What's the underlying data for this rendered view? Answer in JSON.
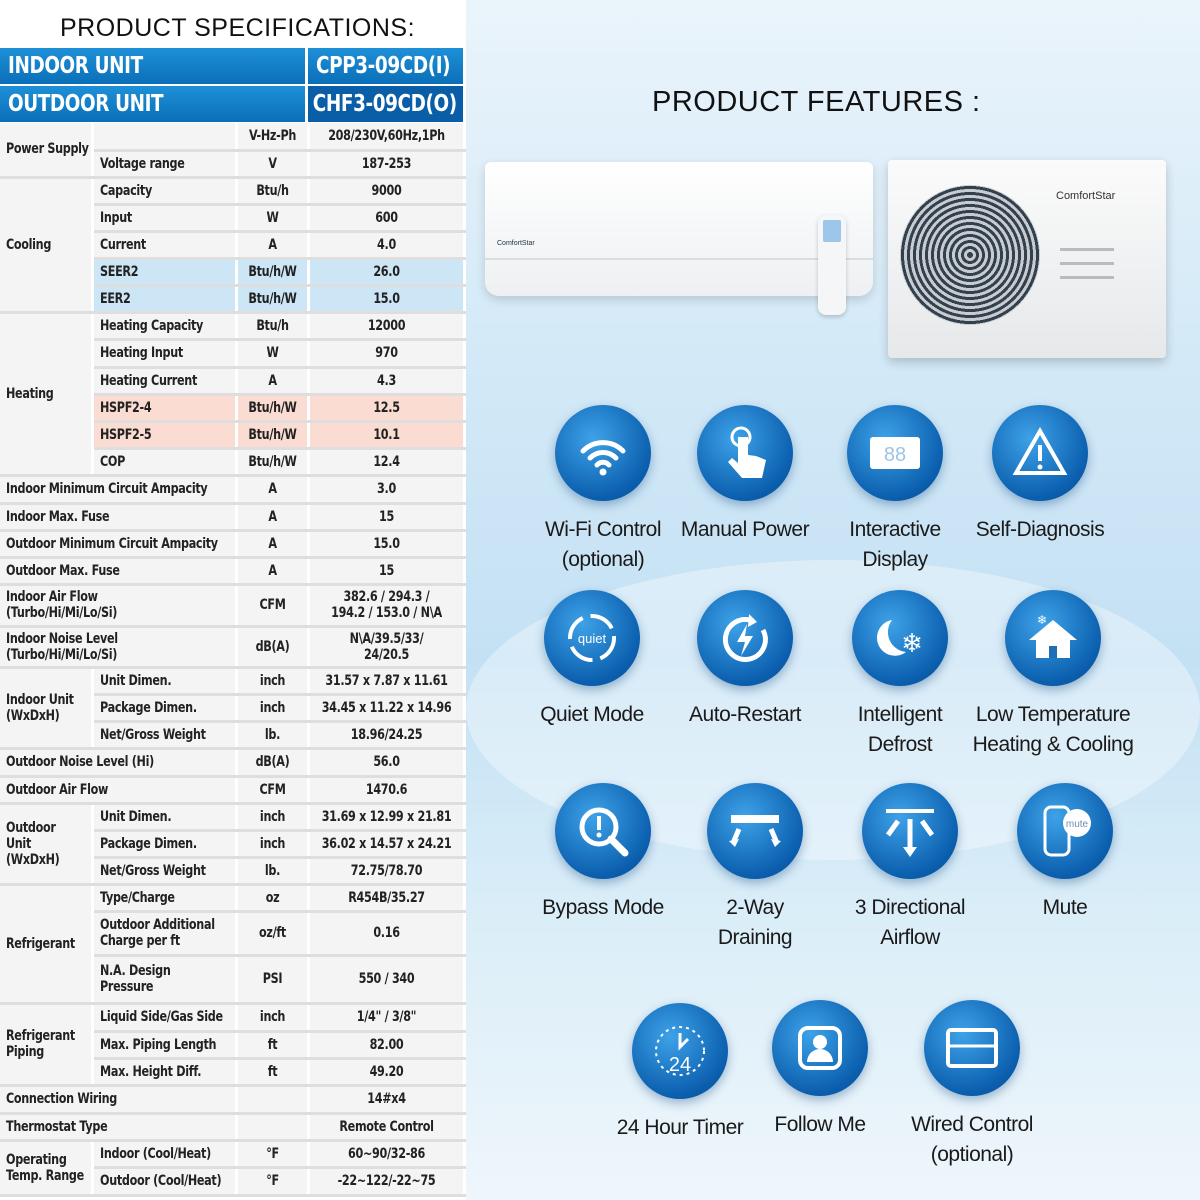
{
  "spec_title": "PRODUCT SPECIFICATIONS:",
  "features_title": "PRODUCT FEATURES :",
  "header": {
    "indoor_label": "INDOOR UNIT",
    "indoor_model": "CPP3-09CD(I)",
    "outdoor_label": "OUTDOOR UNIT",
    "outdoor_model": "CHF3-09CD(O)"
  },
  "brand": "ComfortStar",
  "rows": [
    {
      "g": "Power Supply",
      "gs": 2,
      "p": "",
      "u": "V-Hz-Ph",
      "v": "208/230V,60Hz,1Ph",
      "h": 27
    },
    {
      "p": "Voltage range",
      "u": "V",
      "v": "187-253",
      "h": 27
    },
    {
      "g": "Cooling",
      "gs": 5,
      "p": "Capacity",
      "u": "Btu/h",
      "v": "9000",
      "h": 27
    },
    {
      "p": "Input",
      "u": "W",
      "v": "600",
      "h": 27
    },
    {
      "p": "Current",
      "u": "A",
      "v": "4.0",
      "h": 27
    },
    {
      "p": "SEER2",
      "u": "Btu/h/W",
      "v": "26.0",
      "h": 27,
      "hl": "blue"
    },
    {
      "p": "EER2",
      "u": "Btu/h/W",
      "v": "15.0",
      "h": 27,
      "hl": "blue"
    },
    {
      "g": "Heating",
      "gs": 6,
      "p": "Heating Capacity",
      "u": "Btu/h",
      "v": "12000",
      "h": 27
    },
    {
      "p": "Heating Input",
      "u": "W",
      "v": "970",
      "h": 28
    },
    {
      "p": "Heating Current",
      "u": "A",
      "v": "4.3",
      "h": 27
    },
    {
      "p": "HSPF2-4",
      "u": "Btu/h/W",
      "v": "12.5",
      "h": 27,
      "hl": "pink"
    },
    {
      "p": "HSPF2-5",
      "u": "Btu/h/W",
      "v": "10.1",
      "h": 27,
      "hl": "pink"
    },
    {
      "p": "COP",
      "u": "Btu/h/W",
      "v": "12.4",
      "h": 27
    },
    {
      "w": "Indoor Minimum Circuit Ampacity",
      "u": "A",
      "v": "3.0",
      "h": 28
    },
    {
      "w": "Indoor Max. Fuse",
      "u": "A",
      "v": "15",
      "h": 27
    },
    {
      "w": "Outdoor Minimum Circuit Ampacity",
      "u": "A",
      "v": "15.0",
      "h": 27
    },
    {
      "w": "Outdoor Max. Fuse",
      "u": "A",
      "v": "15",
      "h": 27
    },
    {
      "w": "Indoor Air Flow\n(Turbo/Hi/Mi/Lo/Si)",
      "u": "CFM",
      "v": "382.6 / 294.3 /\n194.2 / 153.0 / N\\A",
      "h": 42
    },
    {
      "w": "Indoor Noise Level\n(Turbo/Hi/Mi/Lo/Si)",
      "u": "dB(A)",
      "v": "N\\A/39.5/33/\n24/20.5",
      "h": 41
    },
    {
      "g": "Indoor Unit\n(WxDxH)",
      "gs": 3,
      "p": "Unit Dimen.",
      "u": "inch",
      "v": "31.57 x 7.87 x 11.61",
      "h": 27
    },
    {
      "p": "Package Dimen.",
      "u": "inch",
      "v": "34.45 x 11.22 x 14.96",
      "h": 27
    },
    {
      "p": "Net/Gross Weight",
      "u": "lb.",
      "v": "18.96/24.25",
      "h": 27
    },
    {
      "w": "Outdoor Noise Level (Hi)",
      "u": "dB(A)",
      "v": "56.0",
      "h": 28
    },
    {
      "w": "Outdoor Air Flow",
      "u": "CFM",
      "v": "1470.6",
      "h": 27
    },
    {
      "g": "Outdoor\nUnit\n(WxDxH)",
      "gs": 3,
      "p": "Unit Dimen.",
      "u": "inch",
      "v": "31.69 x 12.99 x 21.81",
      "h": 27
    },
    {
      "p": "Package Dimen.",
      "u": "inch",
      "v": "36.02 x 14.57 x 24.21",
      "h": 27
    },
    {
      "p": "Net/Gross Weight",
      "u": "lb.",
      "v": "72.75/78.70",
      "h": 27
    },
    {
      "g": "Refrigerant",
      "gs": 3,
      "p": "Type/Charge",
      "u": "oz",
      "v": "R454B/35.27",
      "h": 27
    },
    {
      "p": "Outdoor Additional\nCharge per ft",
      "u": "oz/ft",
      "v": "0.16",
      "h": 44
    },
    {
      "p": "N.A. Design\nPressure",
      "u": "PSI",
      "v": "550 / 340",
      "h": 48
    },
    {
      "g": "Refrigerant\nPiping",
      "gs": 3,
      "p": "Liquid Side/Gas Side",
      "u": "inch",
      "v": "1/4\" / 3/8\"",
      "h": 28
    },
    {
      "p": "Max. Piping Length",
      "u": "ft",
      "v": "82.00",
      "h": 27
    },
    {
      "p": "Max. Height Diff.",
      "u": "ft",
      "v": "49.20",
      "h": 27
    },
    {
      "w": "Connection Wiring",
      "u": "",
      "v": "14#x4",
      "h": 28
    },
    {
      "w": "Thermostat Type",
      "u": "",
      "v": "Remote Control",
      "h": 27
    },
    {
      "g": "Operating\nTemp. Range",
      "gs": 2,
      "p": "Indoor (Cool/Heat)",
      "u": "°F",
      "v": "60~90/32-86",
      "h": 27
    },
    {
      "p": "Outdoor (Cool/Heat)",
      "u": "°F",
      "v": "-22~122/-22~75",
      "h": 28
    }
  ],
  "features": [
    {
      "label": "Wi-Fi Control\n(optional)",
      "icon": "wifi-icon"
    },
    {
      "label": "Manual Power",
      "icon": "hand-press-icon"
    },
    {
      "label": "Interactive\nDisplay",
      "icon": "display-icon"
    },
    {
      "label": "Self-Diagnosis",
      "icon": "warning-icon"
    },
    {
      "label": "Quiet Mode",
      "icon": "quiet-icon",
      "icon_text": "quiet"
    },
    {
      "label": "Auto-Restart",
      "icon": "restart-icon"
    },
    {
      "label": "Intelligent\nDefrost",
      "icon": "defrost-icon"
    },
    {
      "label": "Low Temperature\nHeating & Cooling",
      "icon": "house-snow-icon"
    },
    {
      "label": "Bypass Mode",
      "icon": "search-alert-icon"
    },
    {
      "label": "2-Way\nDraining",
      "icon": "two-way-icon"
    },
    {
      "label": "3 Directional\nAirflow",
      "icon": "three-way-airflow-icon"
    },
    {
      "label": "Mute",
      "icon": "mute-remote-icon",
      "icon_text": "mute"
    },
    {
      "label": "24 Hour Timer",
      "icon": "timer-icon",
      "icon_text": "24"
    },
    {
      "label": "Follow Me",
      "icon": "follow-me-icon"
    },
    {
      "label": "Wired Control\n(optional)",
      "icon": "wired-control-icon"
    }
  ],
  "colors": {
    "header_blue": "#0a78c4",
    "seer_highlight": "#cde6f6",
    "hspf_highlight": "#fbdcd2",
    "icon_blue": "#0b5fae"
  }
}
